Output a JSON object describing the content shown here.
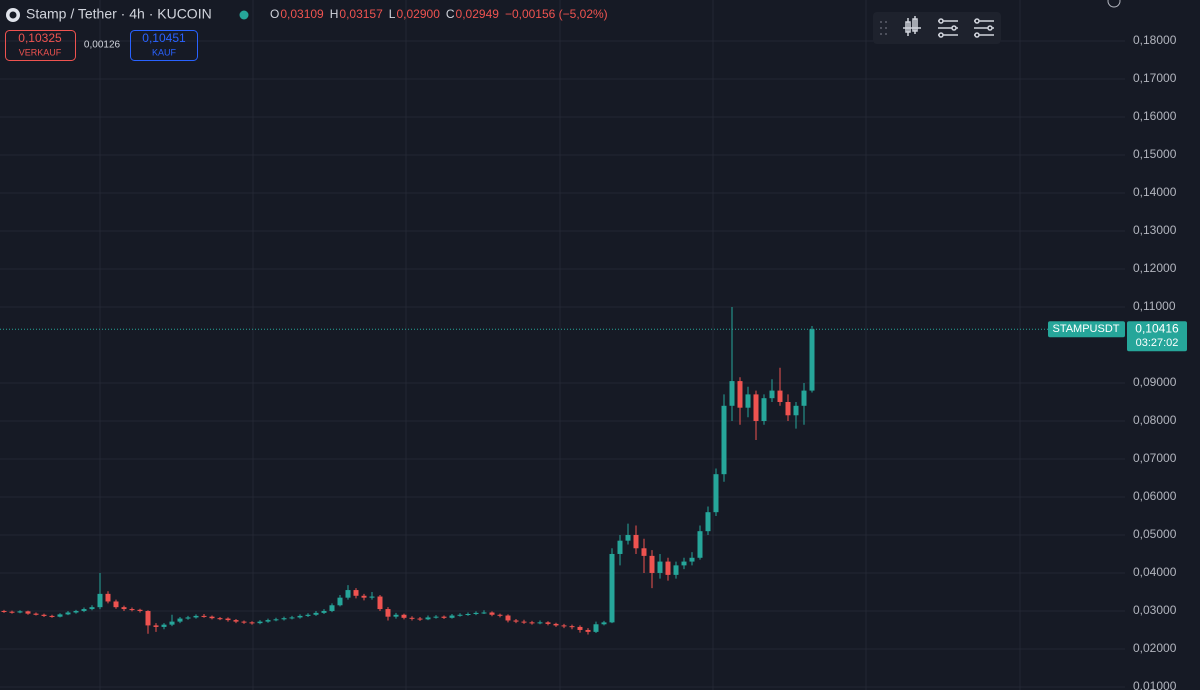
{
  "chart_data": {
    "type": "candlestick",
    "title": "Stamp / Tether · 4h · KUCOIN",
    "ohlc_legend": {
      "labels": [
        "O",
        "H",
        "L",
        "C"
      ],
      "values": [
        "0,03109",
        "0,03157",
        "0,02900",
        "0,02949"
      ],
      "change": "−0,00156 (−5,02%)"
    },
    "trade": {
      "sell_price": "0,10325",
      "sell_label": "VERKAUF",
      "spread": "0,00126",
      "buy_price": "0,10451",
      "buy_label": "KAUF"
    },
    "symbol_label": "STAMPUSDT",
    "last_price": {
      "value": 0.10416,
      "label": "0,10416"
    },
    "countdown": "03:27:02",
    "up_color": "#26a69a",
    "down_color": "#ef5350",
    "grid": true,
    "ylim": [
      0.0092,
      0.1908
    ],
    "yticks": [
      {
        "value": 0.01,
        "label": "0,01000"
      },
      {
        "value": 0.02,
        "label": "0,02000"
      },
      {
        "value": 0.03,
        "label": "0,03000"
      },
      {
        "value": 0.04,
        "label": "0,04000"
      },
      {
        "value": 0.05,
        "label": "0,05000"
      },
      {
        "value": 0.06,
        "label": "0,06000"
      },
      {
        "value": 0.07,
        "label": "0,07000"
      },
      {
        "value": 0.08,
        "label": "0,08000"
      },
      {
        "value": 0.09,
        "label": "0,09000"
      },
      {
        "value": 0.11,
        "label": "0,11000"
      },
      {
        "value": 0.12,
        "label": "0,12000"
      },
      {
        "value": 0.13,
        "label": "0,13000"
      },
      {
        "value": 0.14,
        "label": "0,14000"
      },
      {
        "value": 0.15,
        "label": "0,15000"
      },
      {
        "value": 0.16,
        "label": "0,16000"
      },
      {
        "value": 0.17,
        "label": "0,17000"
      },
      {
        "value": 0.18,
        "label": "0,18000"
      }
    ],
    "candles": [
      [
        0.03,
        0.0303,
        0.0295,
        0.0298
      ],
      [
        0.0298,
        0.0301,
        0.0293,
        0.0296
      ],
      [
        0.0296,
        0.0302,
        0.0294,
        0.0299
      ],
      [
        0.0299,
        0.0301,
        0.029,
        0.0293
      ],
      [
        0.0293,
        0.0296,
        0.0288,
        0.029
      ],
      [
        0.029,
        0.0293,
        0.0284,
        0.0287
      ],
      [
        0.0287,
        0.029,
        0.0282,
        0.0285
      ],
      [
        0.0285,
        0.0294,
        0.0283,
        0.0291
      ],
      [
        0.0291,
        0.03,
        0.0289,
        0.0296
      ],
      [
        0.0296,
        0.0303,
        0.0293,
        0.03
      ],
      [
        0.03,
        0.0309,
        0.0297,
        0.0305
      ],
      [
        0.0305,
        0.0315,
        0.0302,
        0.031
      ],
      [
        0.031,
        0.04,
        0.0305,
        0.0345
      ],
      [
        0.0345,
        0.0352,
        0.032,
        0.0325
      ],
      [
        0.0325,
        0.033,
        0.0306,
        0.031
      ],
      [
        0.031,
        0.0314,
        0.03,
        0.0305
      ],
      [
        0.0305,
        0.0309,
        0.0299,
        0.0303
      ],
      [
        0.0303,
        0.0306,
        0.0296,
        0.03
      ],
      [
        0.03,
        0.0302,
        0.024,
        0.0262
      ],
      [
        0.0262,
        0.0268,
        0.0245,
        0.0258
      ],
      [
        0.0258,
        0.0268,
        0.0252,
        0.0264
      ],
      [
        0.0264,
        0.029,
        0.026,
        0.0272
      ],
      [
        0.0272,
        0.0284,
        0.0268,
        0.028
      ],
      [
        0.028,
        0.0287,
        0.0277,
        0.0283
      ],
      [
        0.0283,
        0.0291,
        0.028,
        0.0287
      ],
      [
        0.0287,
        0.0292,
        0.0282,
        0.0285
      ],
      [
        0.0285,
        0.0288,
        0.0278,
        0.0281
      ],
      [
        0.0281,
        0.0284,
        0.0276,
        0.028
      ],
      [
        0.028,
        0.0283,
        0.0272,
        0.0276
      ],
      [
        0.0276,
        0.0279,
        0.0268,
        0.0272
      ],
      [
        0.0272,
        0.0275,
        0.0266,
        0.027
      ],
      [
        0.027,
        0.0273,
        0.0264,
        0.0268
      ],
      [
        0.0268,
        0.0276,
        0.0265,
        0.0272
      ],
      [
        0.0272,
        0.028,
        0.0269,
        0.0276
      ],
      [
        0.0276,
        0.0282,
        0.0273,
        0.0278
      ],
      [
        0.0278,
        0.0285,
        0.0275,
        0.0281
      ],
      [
        0.0281,
        0.0287,
        0.0278,
        0.0283
      ],
      [
        0.0283,
        0.0291,
        0.028,
        0.0287
      ],
      [
        0.0287,
        0.0294,
        0.0284,
        0.029
      ],
      [
        0.029,
        0.03,
        0.0287,
        0.0295
      ],
      [
        0.0295,
        0.0305,
        0.0292,
        0.03
      ],
      [
        0.03,
        0.032,
        0.0297,
        0.0315
      ],
      [
        0.0315,
        0.0342,
        0.0312,
        0.0335
      ],
      [
        0.0335,
        0.0368,
        0.033,
        0.0355
      ],
      [
        0.0355,
        0.036,
        0.0333,
        0.034
      ],
      [
        0.034,
        0.0345,
        0.0328,
        0.0335
      ],
      [
        0.0335,
        0.035,
        0.033,
        0.0338
      ],
      [
        0.0338,
        0.0342,
        0.03,
        0.0305
      ],
      [
        0.0305,
        0.031,
        0.0275,
        0.0285
      ],
      [
        0.0285,
        0.0295,
        0.028,
        0.029
      ],
      [
        0.029,
        0.0293,
        0.0278,
        0.0282
      ],
      [
        0.0282,
        0.0286,
        0.0275,
        0.028
      ],
      [
        0.028,
        0.0284,
        0.0274,
        0.0278
      ],
      [
        0.0278,
        0.0288,
        0.0276,
        0.0283
      ],
      [
        0.0283,
        0.0289,
        0.028,
        0.0285
      ],
      [
        0.0285,
        0.0288,
        0.0279,
        0.0282
      ],
      [
        0.0282,
        0.0292,
        0.028,
        0.0288
      ],
      [
        0.0288,
        0.0294,
        0.0285,
        0.029
      ],
      [
        0.029,
        0.0296,
        0.0287,
        0.0292
      ],
      [
        0.0292,
        0.0299,
        0.0289,
        0.0295
      ],
      [
        0.0295,
        0.0302,
        0.0292,
        0.0296
      ],
      [
        0.0296,
        0.0299,
        0.0286,
        0.029
      ],
      [
        0.029,
        0.0293,
        0.0283,
        0.0288
      ],
      [
        0.0288,
        0.0291,
        0.027,
        0.0275
      ],
      [
        0.0275,
        0.0279,
        0.0268,
        0.0272
      ],
      [
        0.0272,
        0.0277,
        0.0266,
        0.027
      ],
      [
        0.027,
        0.0274,
        0.0264,
        0.0268
      ],
      [
        0.0268,
        0.0275,
        0.0265,
        0.027
      ],
      [
        0.027,
        0.0273,
        0.0262,
        0.0266
      ],
      [
        0.0266,
        0.0269,
        0.0258,
        0.0262
      ],
      [
        0.0262,
        0.0266,
        0.0255,
        0.026
      ],
      [
        0.026,
        0.0264,
        0.0252,
        0.0258
      ],
      [
        0.0258,
        0.0262,
        0.0243,
        0.025
      ],
      [
        0.025,
        0.0255,
        0.0238,
        0.0245
      ],
      [
        0.0245,
        0.0272,
        0.0242,
        0.0265
      ],
      [
        0.0265,
        0.0274,
        0.0262,
        0.027
      ],
      [
        0.027,
        0.0465,
        0.0268,
        0.045
      ],
      [
        0.045,
        0.05,
        0.042,
        0.0485
      ],
      [
        0.0485,
        0.053,
        0.0475,
        0.05
      ],
      [
        0.05,
        0.0525,
        0.045,
        0.0465
      ],
      [
        0.0465,
        0.049,
        0.04,
        0.0445
      ],
      [
        0.0445,
        0.046,
        0.036,
        0.04
      ],
      [
        0.04,
        0.045,
        0.0385,
        0.043
      ],
      [
        0.043,
        0.044,
        0.038,
        0.0395
      ],
      [
        0.0395,
        0.043,
        0.0385,
        0.042
      ],
      [
        0.042,
        0.044,
        0.041,
        0.043
      ],
      [
        0.043,
        0.0455,
        0.042,
        0.044
      ],
      [
        0.044,
        0.0525,
        0.0435,
        0.051
      ],
      [
        0.051,
        0.0575,
        0.05,
        0.056
      ],
      [
        0.056,
        0.0675,
        0.055,
        0.066
      ],
      [
        0.066,
        0.087,
        0.064,
        0.084
      ],
      [
        0.084,
        0.11,
        0.08,
        0.0905
      ],
      [
        0.0905,
        0.0915,
        0.079,
        0.0835
      ],
      [
        0.0835,
        0.089,
        0.081,
        0.087
      ],
      [
        0.087,
        0.088,
        0.075,
        0.08
      ],
      [
        0.08,
        0.087,
        0.079,
        0.086
      ],
      [
        0.086,
        0.091,
        0.085,
        0.088
      ],
      [
        0.088,
        0.094,
        0.084,
        0.085
      ],
      [
        0.085,
        0.087,
        0.08,
        0.0815
      ],
      [
        0.0815,
        0.085,
        0.078,
        0.084
      ],
      [
        0.084,
        0.09,
        0.079,
        0.088
      ],
      [
        0.088,
        0.105,
        0.0875,
        0.10416
      ]
    ]
  }
}
